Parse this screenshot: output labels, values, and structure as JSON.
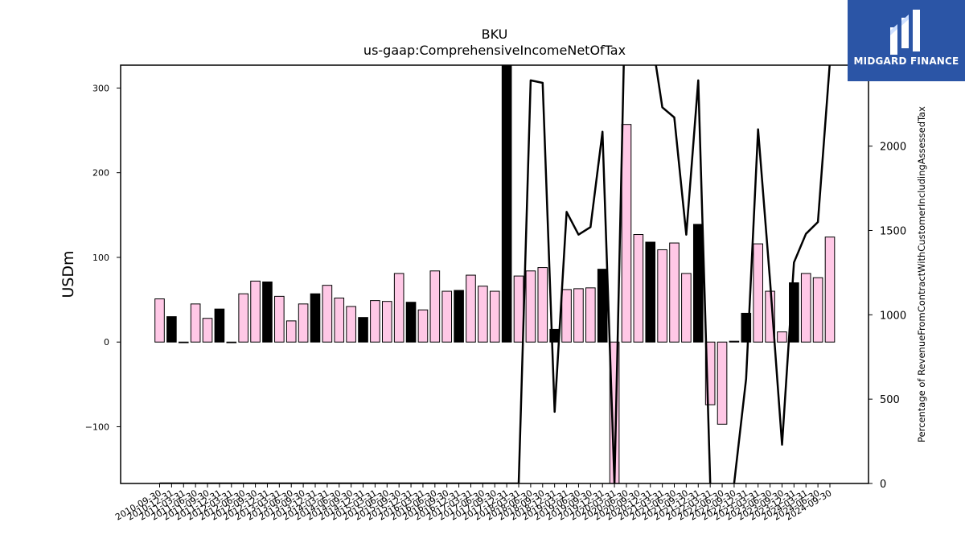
{
  "chart_data": {
    "type": "bar",
    "title": "BKU",
    "subtitle": "us-gaap:ComprehensiveIncomeNetOfTax",
    "ylabel": "USDm",
    "y2label": "Percentage of RevenueFromContractWithCustomerIncludingAssessedTax",
    "ylim": [
      -167,
      327
    ],
    "y2lim": [
      0,
      2480
    ],
    "yticks": [
      -100,
      0,
      100,
      200,
      300
    ],
    "y2ticks": [
      0,
      500,
      1000,
      1500,
      2000
    ],
    "grid": false,
    "categories": [
      "2010-09-30",
      "2010-12-31",
      "2011-03-31",
      "2011-06-30",
      "2011-09-30",
      "2011-12-31",
      "2012-03-31",
      "2012-06-30",
      "2012-09-30",
      "2012-12-31",
      "2013-03-31",
      "2013-06-30",
      "2013-09-30",
      "2013-12-31",
      "2014-03-31",
      "2014-06-30",
      "2014-09-30",
      "2014-12-31",
      "2015-03-31",
      "2015-06-30",
      "2015-09-30",
      "2015-12-31",
      "2016-03-31",
      "2016-06-30",
      "2016-09-30",
      "2016-12-31",
      "2017-03-31",
      "2017-06-30",
      "2017-09-30",
      "2017-12-31",
      "2018-03-31",
      "2018-06-30",
      "2018-09-30",
      "2018-12-31",
      "2019-03-31",
      "2019-06-30",
      "2019-09-30",
      "2019-12-31",
      "2020-03-31",
      "2020-06-30",
      "2020-09-30",
      "2020-12-31",
      "2021-03-31",
      "2021-06-30",
      "2021-09-30",
      "2021-12-31",
      "2022-03-31",
      "2022-06-30",
      "2022-09-30",
      "2022-12-31",
      "2023-03-31",
      "2023-06-30",
      "2023-09-30",
      "2023-12-31",
      "2024-03-31",
      "2024-06-30",
      "2024-09-30"
    ],
    "series": [
      {
        "type": "bar",
        "axis": "left",
        "unit": "USDm",
        "values": [
          51,
          30,
          0,
          45,
          28,
          39,
          0,
          57,
          72,
          71,
          54,
          25,
          45,
          57,
          67,
          52,
          42,
          29,
          49,
          48,
          81,
          47,
          38,
          84,
          60,
          61,
          79,
          66,
          60,
          370,
          78,
          84,
          88,
          15,
          62,
          63,
          64,
          86,
          -178,
          257,
          127,
          118,
          109,
          117,
          81,
          139,
          -74,
          -97,
          1,
          34,
          116,
          60,
          12,
          70,
          81,
          76,
          124
        ],
        "colors": [
          "#ffc8e6",
          "#000000",
          "#ffc8e6",
          "#ffc8e6",
          "#ffc8e6",
          "#000000",
          "#ffc8e6",
          "#ffc8e6",
          "#ffc8e6",
          "#000000",
          "#ffc8e6",
          "#ffc8e6",
          "#ffc8e6",
          "#000000",
          "#ffc8e6",
          "#ffc8e6",
          "#ffc8e6",
          "#000000",
          "#ffc8e6",
          "#ffc8e6",
          "#ffc8e6",
          "#000000",
          "#ffc8e6",
          "#ffc8e6",
          "#ffc8e6",
          "#000000",
          "#ffc8e6",
          "#ffc8e6",
          "#ffc8e6",
          "#000000",
          "#ffc8e6",
          "#ffc8e6",
          "#ffc8e6",
          "#000000",
          "#ffc8e6",
          "#ffc8e6",
          "#ffc8e6",
          "#000000",
          "#ffc8e6",
          "#ffc8e6",
          "#ffc8e6",
          "#000000",
          "#ffc8e6",
          "#ffc8e6",
          "#ffc8e6",
          "#000000",
          "#ffc8e6",
          "#ffc8e6",
          "#ffc8e6",
          "#000000",
          "#ffc8e6",
          "#ffc8e6",
          "#ffc8e6",
          "#000000",
          "#ffc8e6",
          "#ffc8e6",
          "#ffc8e6"
        ]
      },
      {
        "type": "line",
        "axis": "right",
        "unit": "%",
        "color": "#000000",
        "values": [
          0,
          0,
          0,
          0,
          0,
          0,
          0,
          0,
          0,
          0,
          0,
          0,
          0,
          0,
          0,
          0,
          0,
          0,
          0,
          0,
          0,
          0,
          0,
          0,
          0,
          0,
          0,
          0,
          0,
          0,
          0,
          2390,
          2375,
          425,
          1610,
          1475,
          1520,
          2085,
          0,
          3200,
          2800,
          2700,
          2230,
          2170,
          1475,
          2390,
          0,
          -200,
          0,
          620,
          2100,
          1200,
          230,
          1310,
          1480,
          1550,
          2500
        ]
      }
    ]
  },
  "logo": {
    "text": "MIDGARD FINANCE",
    "bg_color": "#2b55a6"
  }
}
